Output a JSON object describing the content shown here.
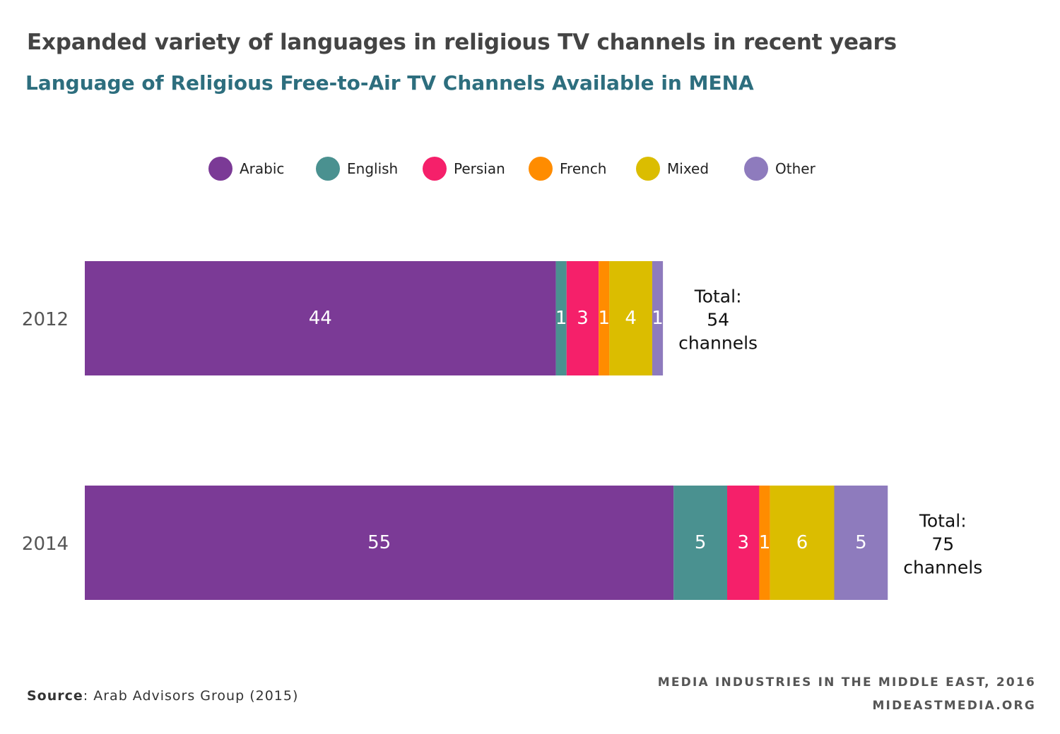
{
  "title": "Expanded variety of languages in religious TV channels in recent years",
  "subtitle": "Language of Religious Free-to-Air TV Channels Available in MENA",
  "source": {
    "label": "Source",
    "text": ": Arab Advisors Group (2015)"
  },
  "credit": {
    "line1": "MEDIA INDUSTRIES IN THE MIDDLE EAST, 2016",
    "line2": "MIDEASTMEDIA.ORG"
  },
  "chart_data": {
    "type": "bar",
    "orientation": "horizontal",
    "stacked": true,
    "categories": [
      "2012",
      "2014"
    ],
    "series": [
      {
        "name": "Arabic",
        "color": "#7b3a96",
        "values": [
          44,
          55
        ]
      },
      {
        "name": "English",
        "color": "#4a9190",
        "values": [
          1,
          5
        ]
      },
      {
        "name": "Persian",
        "color": "#f5206a",
        "values": [
          3,
          3
        ]
      },
      {
        "name": "French",
        "color": "#ff8c00",
        "values": [
          1,
          1
        ]
      },
      {
        "name": "Mixed",
        "color": "#dbbd00",
        "values": [
          4,
          6
        ]
      },
      {
        "name": "Other",
        "color": "#8e7bbd",
        "values": [
          1,
          5
        ]
      }
    ],
    "totals": [
      {
        "line1": "Total:",
        "line2": "54",
        "line3": "channels"
      },
      {
        "line1": "Total:",
        "line2": "75",
        "line3": "channels"
      }
    ],
    "legend": "top",
    "grid": false
  }
}
